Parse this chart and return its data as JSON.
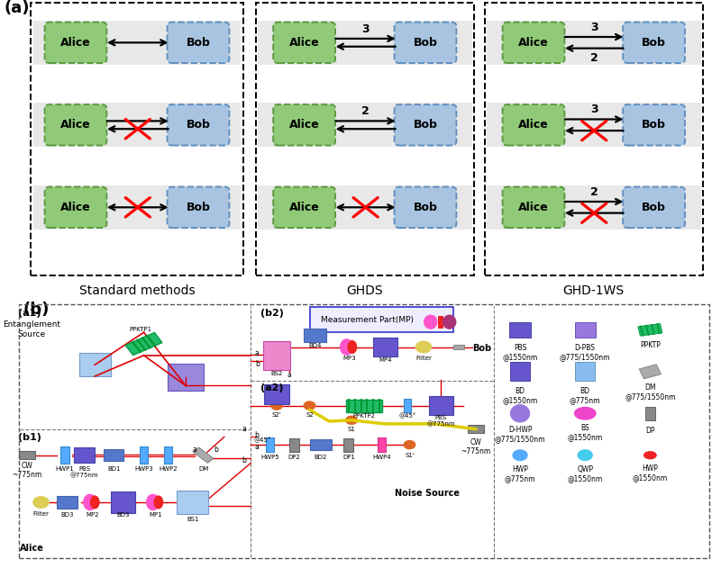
{
  "background_color": "#ffffff",
  "alice_color": "#90c978",
  "alice_edge": "#5a9a40",
  "bob_color": "#a8c4e0",
  "bob_edge": "#6090c0",
  "row_bg": "#e8e8e8",
  "section_titles": [
    "Standard methods",
    "GHDS",
    "GHD-1WS"
  ],
  "pbs_color": "#6655cc",
  "dpbs_color": "#9977dd",
  "ppktp_color": "#22bb66",
  "bd_blue": "#5577cc",
  "bd_light": "#88bbee",
  "dm_color": "#aaaaaa",
  "dhwp_color": "#9977dd",
  "bs_color": "#7799dd",
  "dp_color": "#888888",
  "hwp_blue": "#55aaff",
  "qwp_cyan": "#44ccee",
  "hwp_pink": "#ff44aa",
  "mp_pink": "#ff55cc",
  "mp_red": "#ee2222",
  "mp_darkpink": "#cc3388",
  "filter_yellow": "#ddcc55",
  "beam_red": "#dd0000",
  "fiber_yellow": "#ddcc00"
}
